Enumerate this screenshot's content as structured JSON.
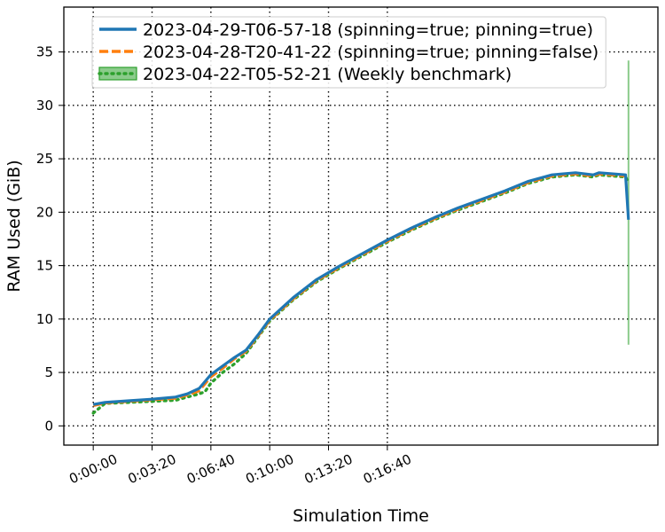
{
  "chart_data": {
    "type": "line",
    "xlabel": "Simulation Time",
    "ylabel": "RAM Used (GiB)",
    "x_unit": "seconds",
    "xlim": [
      -100,
      1920
    ],
    "ylim": [
      -1.8,
      39.2
    ],
    "x_ticks": [
      0,
      200,
      400,
      600,
      800,
      1000
    ],
    "x_tick_labels": [
      "0:00:00",
      "0:03:20",
      "0:06:40",
      "0:10:00",
      "0:13:20",
      "0:16:40"
    ],
    "y_ticks": [
      0,
      5,
      10,
      15,
      20,
      25,
      30,
      35
    ],
    "y_tick_labels": [
      "0",
      "5",
      "10",
      "15",
      "20",
      "25",
      "30",
      "35"
    ],
    "grid": true,
    "legend_position": "top",
    "series": [
      {
        "name": "2023-04-29-T06-57-18 (spinning=true; pinning=true)",
        "color": "#1f77b4",
        "style": "solid",
        "x": [
          0,
          40,
          120,
          200,
          280,
          320,
          360,
          400,
          440,
          480,
          520,
          560,
          600,
          680,
          760,
          840,
          920,
          1000,
          1080,
          1160,
          1240,
          1320,
          1400,
          1480,
          1560,
          1640,
          1700,
          1720,
          1810,
          1820
        ],
        "y": [
          2.0,
          2.2,
          2.35,
          2.5,
          2.7,
          3.0,
          3.5,
          4.8,
          5.6,
          6.4,
          7.1,
          8.5,
          10.0,
          12.0,
          13.7,
          15.0,
          16.2,
          17.4,
          18.5,
          19.5,
          20.4,
          21.2,
          22.0,
          22.9,
          23.5,
          23.7,
          23.5,
          23.7,
          23.5,
          19.3
        ]
      },
      {
        "name": "2023-04-28-T20-41-22 (spinning=true; pinning=false)",
        "color": "#ff7f0e",
        "style": "dashed",
        "x": [
          0,
          40,
          120,
          200,
          280,
          320,
          360,
          400,
          440,
          480,
          520,
          560,
          600,
          680,
          760,
          840,
          920,
          1000,
          1080,
          1160,
          1240,
          1320,
          1400,
          1480,
          1560,
          1640,
          1700,
          1720,
          1810
        ],
        "y": [
          1.9,
          2.15,
          2.3,
          2.45,
          2.6,
          2.9,
          3.3,
          4.6,
          5.4,
          6.3,
          7.0,
          8.4,
          9.9,
          11.9,
          13.6,
          14.9,
          16.1,
          17.3,
          18.4,
          19.4,
          20.3,
          21.1,
          21.9,
          22.8,
          23.4,
          23.6,
          23.4,
          23.6,
          23.4
        ]
      },
      {
        "name": "2023-04-22-T05-52-21 (Weekly benchmark)",
        "color": "#2ca02c",
        "style": "dotted",
        "band": true,
        "x": [
          0,
          40,
          120,
          200,
          280,
          320,
          360,
          380,
          400,
          440,
          480,
          520,
          560,
          600,
          680,
          760,
          840,
          920,
          1000,
          1080,
          1160,
          1240,
          1320,
          1400,
          1480,
          1560,
          1640,
          1700,
          1720,
          1810,
          1820
        ],
        "y": [
          1.2,
          2.1,
          2.2,
          2.3,
          2.4,
          2.7,
          3.0,
          3.2,
          4.0,
          5.0,
          5.8,
          6.8,
          8.3,
          9.8,
          11.8,
          13.5,
          14.8,
          16.0,
          17.2,
          18.3,
          19.3,
          20.2,
          21.0,
          21.8,
          22.7,
          23.3,
          23.5,
          23.3,
          23.5,
          23.3,
          22.8
        ],
        "band_x": 1820,
        "band_low": 7.6,
        "band_high": 34.2
      }
    ]
  }
}
